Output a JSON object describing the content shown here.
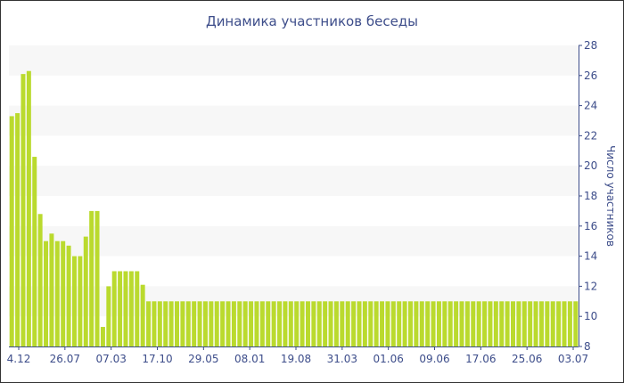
{
  "chart_data": {
    "type": "bar",
    "title": "Динамика участников беседы",
    "xlabel": "",
    "ylabel": "Число участников",
    "ylim": [
      8,
      28
    ],
    "yticks": [
      8,
      10,
      12,
      14,
      16,
      18,
      20,
      22,
      24,
      26,
      28
    ],
    "x_tick_labels": [
      "4.12",
      "26.07",
      "07.03",
      "17.10",
      "29.05",
      "08.01",
      "19.08",
      "31.03",
      "01.06",
      "09.06",
      "17.06",
      "25.06",
      "03.07"
    ],
    "colors": {
      "bar": "#bada2e",
      "band": "#f7f7f7",
      "axis": "#3d4d8a",
      "text": "#3d4d8a"
    },
    "values": [
      23.3,
      23.5,
      26.1,
      26.3,
      20.6,
      16.8,
      15.0,
      15.5,
      15.0,
      15.0,
      14.7,
      14.0,
      14.0,
      15.3,
      17.0,
      17.0,
      9.3,
      12.0,
      13.0,
      13.0,
      13.0,
      13.0,
      13.0,
      12.1,
      11.0,
      11.0,
      11.0,
      11.0,
      11.0,
      11.0,
      11.0,
      11.0,
      11.0,
      11.0,
      11.0,
      11.0,
      11.0,
      11.0,
      11.0,
      11.0,
      11.0,
      11.0,
      11.0,
      11.0,
      11.0,
      11.0,
      11.0,
      11.0,
      11.0,
      11.0,
      11.0,
      11.0,
      11.0,
      11.0,
      11.0,
      11.0,
      11.0,
      11.0,
      11.0,
      11.0,
      11.0,
      11.0,
      11.0,
      11.0,
      11.0,
      11.0,
      11.0,
      11.0,
      11.0,
      11.0,
      11.0,
      11.0,
      11.0,
      11.0,
      11.0,
      11.0,
      11.0,
      11.0,
      11.0,
      11.0,
      11.0,
      11.0,
      11.0,
      11.0,
      11.0,
      11.0,
      11.0,
      11.0,
      11.0,
      11.0,
      11.0,
      11.0,
      11.0,
      11.0,
      11.0,
      11.0,
      11.0,
      11.0,
      11.0,
      11.0
    ]
  }
}
